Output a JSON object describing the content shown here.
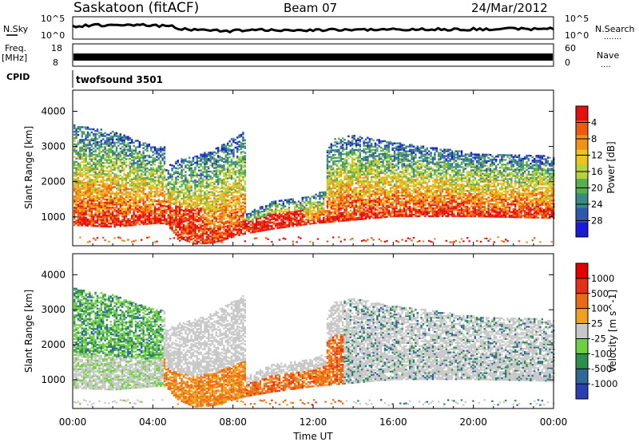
{
  "header": {
    "station": "Saskatoon (fitACF)",
    "beam": "Beam 07",
    "date": "24/Mar/2012"
  },
  "noise_panel": {
    "left_label": "N.Sky",
    "left_ticks": [
      "10^5",
      "10^0"
    ],
    "right_ticks": [
      "10^5",
      "10^0"
    ],
    "right_label": "N.Search",
    "right_legend": "......."
  },
  "freq_panel": {
    "left_label_1": "Freq.",
    "left_label_2": "[MHz]",
    "left_ticks": [
      "18",
      "8"
    ],
    "right_ticks": [
      "60",
      "0"
    ],
    "right_label": "Nave",
    "right_legend": "...."
  },
  "cpid_panel": {
    "label": "CPID",
    "program": "twofsound 3501"
  },
  "time_axis": {
    "ticks": [
      "00:00",
      "04:00",
      "08:00",
      "12:00",
      "16:00",
      "20:00",
      "00:00"
    ],
    "label": "Time UT"
  },
  "chart_data": [
    {
      "type": "heatmap",
      "title": "",
      "xlabel": "Time UT",
      "ylabel": "Slant Range [km]",
      "y_ticks": [
        1000,
        2000,
        3000,
        4000
      ],
      "ylim": [
        180,
        4600
      ],
      "xlim_hours": [
        0,
        24
      ],
      "colorbar": {
        "label": "Power [dB]",
        "ticks": [
          "4",
          "8",
          "12",
          "16",
          "20",
          "24",
          "28"
        ],
        "colors": [
          "#1a1ad9",
          "#2f58ad",
          "#3a8a82",
          "#57b04f",
          "#b8d23a",
          "#f0c21c",
          "#f09118",
          "#ec5a10",
          "#e60f0f"
        ]
      }
    },
    {
      "type": "heatmap",
      "title": "",
      "xlabel": "Time UT",
      "ylabel": "Slant Range [km]",
      "y_ticks": [
        1000,
        2000,
        3000,
        4000
      ],
      "ylim": [
        180,
        4600
      ],
      "xlim_hours": [
        0,
        24
      ],
      "colorbar": {
        "label": "Velocity [m s^-1]",
        "ticks": [
          "1000",
          "500",
          "100",
          "25",
          "-25",
          "-100",
          "-500",
          "-1000"
        ],
        "colors": [
          "#2a3fb0",
          "#2f6a96",
          "#2e8e4e",
          "#6ed040",
          "#c8c8c8",
          "#f0a020",
          "#ec6a14",
          "#e43014",
          "#e00000"
        ]
      }
    }
  ]
}
